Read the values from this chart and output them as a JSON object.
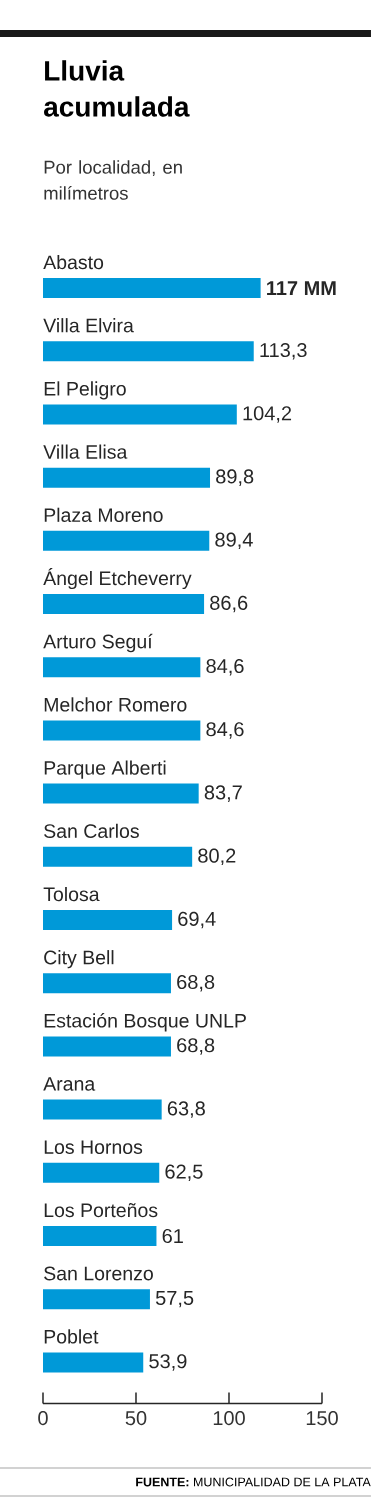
{
  "chart_data": {
    "type": "bar",
    "orientation": "horizontal",
    "title": "Lluvia acumulada",
    "subtitle": "Por localidad, en milímetros",
    "categories": [
      "Abasto",
      "Villa Elvira",
      "El Peligro",
      "Villa Elisa",
      "Plaza Moreno",
      "Ángel Etcheverry",
      "Arturo Seguí",
      "Melchor Romero",
      "Parque Alberti",
      "San Carlos",
      "Tolosa",
      "City Bell",
      "Estación Bosque UNLP",
      "Arana",
      "Los Hornos",
      "Los Porteños",
      "San Lorenzo",
      "Poblet"
    ],
    "values": [
      117,
      113.3,
      104.2,
      89.8,
      89.4,
      86.6,
      84.6,
      84.6,
      83.7,
      80.2,
      69.4,
      68.8,
      68.8,
      63.8,
      62.5,
      61,
      57.5,
      53.9
    ],
    "value_labels": [
      "**117 MM**",
      "113,3",
      "104,2",
      "89,8",
      "89,4",
      "86,6",
      "84,6",
      "84,6",
      "83,7",
      "80,2",
      "69,4",
      "68,8",
      "68,8",
      "63,8",
      "62,5",
      "61",
      "57,5",
      "53,9"
    ],
    "color": "#0099d8",
    "xlim": [
      0,
      150
    ],
    "xticks": [
      0,
      50,
      100,
      150
    ],
    "annotations": [
      "**FUENTE:** MUNICIPALIDAD DE LA PLATA"
    ]
  }
}
